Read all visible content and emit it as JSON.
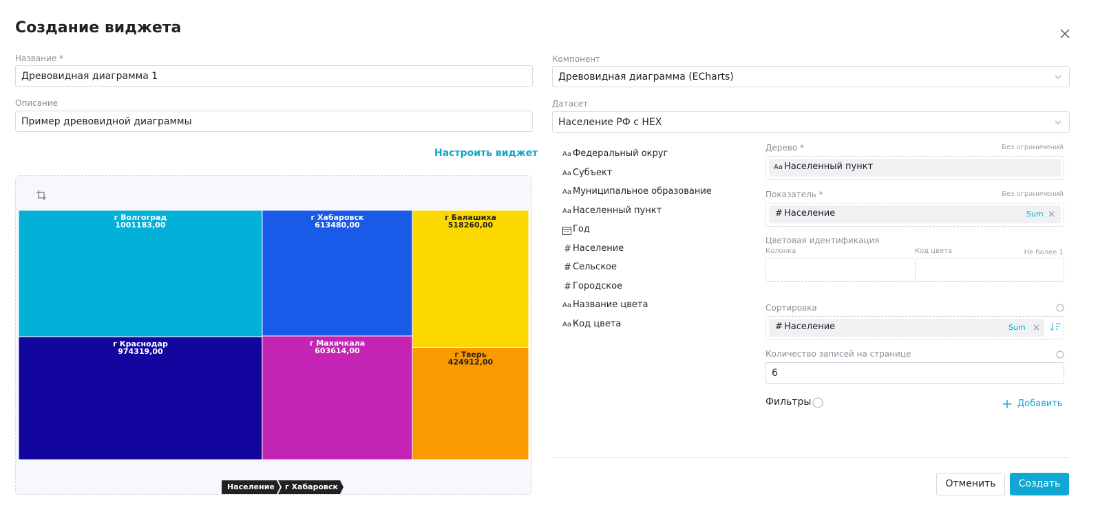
{
  "header": {
    "title": "Создание виджета"
  },
  "form": {
    "name_label": "Название *",
    "name_value": "Древовидная диаграмма 1",
    "description_label": "Описание",
    "description_value": "Пример древовидной диаграммы",
    "configure_link": "Настроить виджет",
    "component_label": "Компонент",
    "component_value": "Древовидная диаграмма (ECharts)",
    "dataset_label": "Датасет",
    "dataset_value": "Население РФ с HEX"
  },
  "fields": [
    {
      "icon": "Aa",
      "label": "Федеральный округ"
    },
    {
      "icon": "Aa",
      "label": "Субъект"
    },
    {
      "icon": "Aa",
      "label": "Муниципальное образование"
    },
    {
      "icon": "Aa",
      "label": "Населенный пункт"
    },
    {
      "label": "Год"
    },
    {
      "icon": "#",
      "label": "Население"
    },
    {
      "icon": "#",
      "label": "Сельское"
    },
    {
      "icon": "#",
      "label": "Городское"
    },
    {
      "icon": "Aa",
      "label": "Название цвета"
    },
    {
      "icon": "Aa",
      "label": "Код цвета"
    }
  ],
  "settings": {
    "tree": {
      "label": "Дерево *",
      "limit": "Без ограничений",
      "icon": "Aa",
      "value": "Населенный пункт"
    },
    "indicator": {
      "label": "Показатель *",
      "limit": "Без ограничений",
      "icon": "#",
      "value": "Население",
      "agg": "Sum"
    },
    "color": {
      "label": "Цветовая идентификация",
      "column": "Колонка",
      "code": "Код цвета",
      "limit": "Не более 1"
    },
    "sort": {
      "label": "Сортировка",
      "icon": "#",
      "value": "Население",
      "agg": "Sum"
    },
    "page_size": {
      "label": "Количество записей на странице",
      "value": "6"
    },
    "filters": {
      "label": "Фильтры",
      "add": "Добавить"
    }
  },
  "footer": {
    "cancel": "Отменить",
    "create": "Создать"
  },
  "chart_data": {
    "type": "treemap",
    "categories": [
      "г Волгоград",
      "г Краснодар",
      "г Хабаровск",
      "г Махачкала",
      "г Балашиха",
      "г Тверь"
    ],
    "values": [
      1001183,
      974319,
      613480,
      603614,
      518260,
      424912
    ],
    "value_labels": [
      "1001183,00",
      "974319,00",
      "613480,00",
      "603614,00",
      "518260,00",
      "424912,00"
    ],
    "colors": [
      "#03b0d8",
      "#13069f",
      "#1a5ae9",
      "#c424b3",
      "#fbd900",
      "#fb9900"
    ],
    "breadcrumb": [
      "Население",
      "г Хабаровск"
    ]
  }
}
